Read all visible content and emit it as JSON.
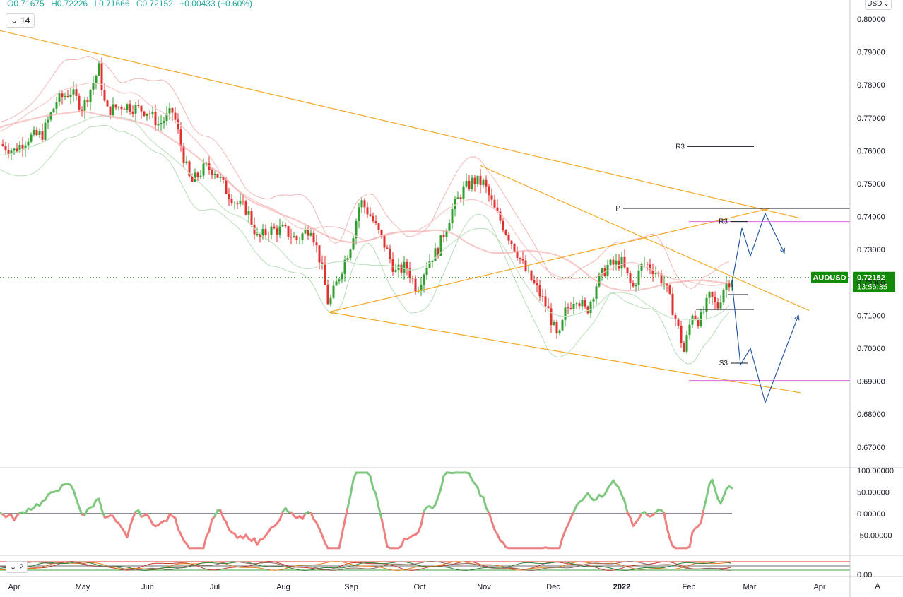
{
  "header": {
    "open": "O0.71675",
    "high": "H0.72226",
    "low": "L0.71666",
    "close": "C0.72152",
    "change": "+0.00433 (+0.60%)",
    "interval": "14",
    "currency": "USD",
    "pane2_interval": "2",
    "auto_button": "A"
  },
  "colors": {
    "up": "#26a69a",
    "down": "#ef5350",
    "candle_up": "#2e9e2e",
    "candle_down": "#e03131",
    "trendline": "#f7a823",
    "projection": "#1c4f9c",
    "pivot_magenta": "#d66bd6",
    "price_badge": "#138a07"
  },
  "chart_data": [
    {
      "type": "candlestick",
      "symbol": "AUDUSD",
      "last_price": "0.72152",
      "countdown": "13:56:35",
      "y_axis_labels": [
        "0.80000",
        "0.79000",
        "0.78000",
        "0.77000",
        "0.76000",
        "0.75000",
        "0.74000",
        "0.73000",
        "0.72000",
        "0.71000",
        "0.70000",
        "0.69000",
        "0.68000",
        "0.67000"
      ],
      "ylim": [
        0.6675,
        0.8035
      ],
      "x_axis_labels": [
        "Apr",
        "May",
        "Jun",
        "Jul",
        "Aug",
        "Sep",
        "Oct",
        "Nov",
        "Dec",
        "2022",
        "Feb",
        "Mar",
        "Apr"
      ],
      "levels": [
        {
          "label": "R3",
          "value": 0.7613
        },
        {
          "label": "P",
          "value": 0.7425
        },
        {
          "label": "R3",
          "value": 0.7385
        },
        {
          "label": "S3",
          "value": 0.6955
        }
      ],
      "monthly_closes": [
        {
          "x": "Apr",
          "close": 0.762
        },
        {
          "x": "May",
          "close": 0.776
        },
        {
          "x": "Jun",
          "close": 0.774
        },
        {
          "x": "Jul",
          "close": 0.75
        },
        {
          "x": "Aug",
          "close": 0.734
        },
        {
          "x": "Sep",
          "close": 0.736
        },
        {
          "x": "Oct",
          "close": 0.722
        },
        {
          "x": "Nov",
          "close": 0.75
        },
        {
          "x": "Dec",
          "close": 0.713
        },
        {
          "x": "2022",
          "close": 0.725
        },
        {
          "x": "Feb",
          "close": 0.712
        },
        {
          "x": "Feb",
          "close": 0.7215
        }
      ]
    },
    {
      "type": "line",
      "name": "oscillator",
      "y_axis_labels": [
        "100.00000",
        "50.00000",
        "0.00000",
        "-50.00000"
      ],
      "ylim": [
        -110,
        110
      ],
      "reference_line": 0
    },
    {
      "type": "line",
      "name": "pane-2",
      "y_axis_labels": [
        "0.00"
      ]
    }
  ]
}
